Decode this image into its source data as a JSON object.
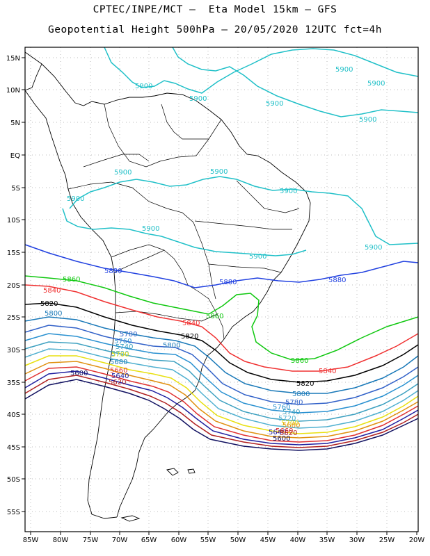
{
  "title_line1": "CPTEC/INPE/MCT —  Eta Model 15km — GFS",
  "title_line2": "Geopotential Height 500hPa — 20/05/2020 12UTC fct=4h",
  "lon_ticks": [
    "85W",
    "80W",
    "75W",
    "70W",
    "65W",
    "60W",
    "55W",
    "50W",
    "45W",
    "40W",
    "35W",
    "30W",
    "25W",
    "20W"
  ],
  "lat_ticks": [
    "15N",
    "10N",
    "5N",
    "EQ",
    "5S",
    "10S",
    "15S",
    "20S",
    "25S",
    "30S",
    "35S",
    "40S",
    "45S",
    "50S",
    "55S"
  ],
  "colors": {
    "c5900": "#20c0c8",
    "c5880": "#2040e0",
    "c5860": "#10c810",
    "c5840": "#f03030",
    "c5820": "#000000",
    "c5800": "#1878b8",
    "c5780": "#3060c8",
    "c5760": "#2890d0",
    "c5740": "#3ca0c0",
    "c5720": "#50b0d0",
    "c5700": "#e8e010",
    "c5680": "#e09010",
    "c5660": "#e03030",
    "c5640": "#2020a0",
    "c5620": "#b02020",
    "c5600": "#101060"
  },
  "contour_labels": {
    "l5900": "5900",
    "l5880": "5880",
    "l5860": "5860",
    "l5840": "5840",
    "l5820": "5820",
    "l5800": "5800",
    "l5780": "5780",
    "l5760": "5760",
    "l5740": "5740",
    "l5720": "5720",
    "l5700": "5700",
    "l5680": "5680",
    "l5660": "5660",
    "l5640": "5640",
    "l5620": "5620",
    "l5600": "5600"
  }
}
